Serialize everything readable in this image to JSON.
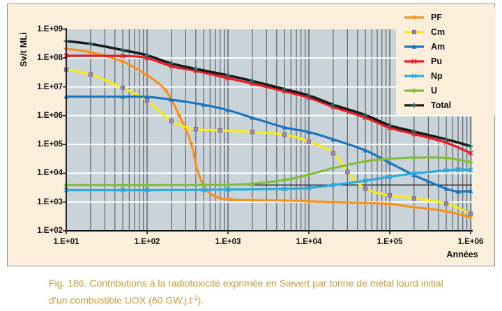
{
  "chart": {
    "y_axis_title": "Sv/t MLi",
    "x_axis_label": "Années",
    "y_ticks": [
      "1.E+09",
      "1.E+08",
      "1.E+07",
      "1.E+06",
      "1.E+05",
      "1.E+04",
      "1.E+03",
      "1.E+02"
    ],
    "x_ticks": [
      "1.E+01",
      "1.E+02",
      "1.E+03",
      "1.E+04",
      "1.E+05",
      "1.E+06"
    ],
    "colors": {
      "page_background": "#ffffff",
      "chart_background": "#fbeeda",
      "plot_background": "#c9d3da",
      "grid_vertical": "#4d4d4d",
      "grid_horizontal": "#ffffff",
      "axis": "#111111",
      "caption_text": "#cd9a3e",
      "box_border": "#90959b"
    }
  },
  "chart_data": {
    "type": "line",
    "title": "",
    "xlabel": "Années",
    "ylabel": "Sv/t MLi",
    "x_scale": "log",
    "y_scale": "log",
    "xlim": [
      10,
      1000000
    ],
    "ylim": [
      100,
      1000000000
    ],
    "grid": "vertical log-minor dark lines each decade; horizontal white major line each decade",
    "legend_position": "top-right overlay",
    "reference_line": {
      "value": 3900,
      "color": "#1a1a1a"
    },
    "series": [
      {
        "name": "PF",
        "color": "#f6921e",
        "marker": "diamond",
        "points": [
          [
            10,
            210000000.0
          ],
          [
            20,
            160000000.0
          ],
          [
            50,
            75000000.0
          ],
          [
            100,
            25000000.0
          ],
          [
            170,
            7500000.0
          ],
          [
            250,
            1000000.0
          ],
          [
            350,
            110000.0
          ],
          [
            420,
            12000.0
          ],
          [
            550,
            2500.0
          ],
          [
            800,
            1350.0
          ],
          [
            1100,
            1220.0
          ],
          [
            2000,
            1180.0
          ],
          [
            5000,
            1120.0
          ],
          [
            10000,
            1050.0
          ],
          [
            20000,
            1000.0
          ],
          [
            50000,
            920.0
          ],
          [
            100000,
            860.0
          ],
          [
            200000,
            660.0
          ],
          [
            500000,
            480.0
          ],
          [
            1000000,
            290.0
          ]
        ]
      },
      {
        "name": "Cm",
        "color": "#f7ec13",
        "marker": "square",
        "marker_color": "#9c86c6",
        "points": [
          [
            10,
            40000000.0
          ],
          [
            20,
            27000000.0
          ],
          [
            50,
            9200000.0
          ],
          [
            100,
            3300000.0
          ],
          [
            200,
            650000.0
          ],
          [
            400,
            340000.0
          ],
          [
            800,
            310000.0
          ],
          [
            2000,
            270000.0
          ],
          [
            5000,
            220000.0
          ],
          [
            10000,
            125000.0
          ],
          [
            20000,
            50000.0
          ],
          [
            30000,
            11000.0
          ],
          [
            50000,
            2900.0
          ],
          [
            100000,
            1700.0
          ],
          [
            200000,
            1350.0
          ],
          [
            500000,
            900.0
          ],
          [
            1000000,
            390.0
          ]
        ]
      },
      {
        "name": "Am",
        "color": "#1b75bc",
        "marker": "triangle",
        "points": [
          [
            10,
            4600000.0
          ],
          [
            50,
            4550000.0
          ],
          [
            100,
            4500000.0
          ],
          [
            200,
            3600000.0
          ],
          [
            500,
            2400000.0
          ],
          [
            1000,
            1550000.0
          ],
          [
            2000,
            850000.0
          ],
          [
            5000,
            390000.0
          ],
          [
            10000,
            270000.0
          ],
          [
            20000,
            150000.0
          ],
          [
            50000,
            62000.0
          ],
          [
            100000,
            23000.0
          ],
          [
            200000,
            8500.0
          ],
          [
            300000,
            5200.0
          ],
          [
            500000,
            2900.0
          ],
          [
            700000,
            2300.0
          ],
          [
            1000000,
            2400.0
          ]
        ]
      },
      {
        "name": "Pu",
        "color": "#ec1b23",
        "marker": "x",
        "points": [
          [
            10,
            120000000.0
          ],
          [
            50,
            118000000.0
          ],
          [
            100,
            100000000.0
          ],
          [
            200,
            52000000.0
          ],
          [
            400,
            36000000.0
          ],
          [
            1000,
            20000000.0
          ],
          [
            2000,
            13000000.0
          ],
          [
            5000,
            7000000.0
          ],
          [
            10000,
            4200000.0
          ],
          [
            20000,
            2000000.0
          ],
          [
            50000,
            850000.0
          ],
          [
            100000,
            380000.0
          ],
          [
            200000,
            230000.0
          ],
          [
            500000,
            115000.0
          ],
          [
            1000000,
            50000.0
          ]
        ]
      },
      {
        "name": "Np",
        "color": "#29abe2",
        "marker": "x",
        "points": [
          [
            10,
            2600.0
          ],
          [
            50,
            2600.0
          ],
          [
            100,
            2600.0
          ],
          [
            500,
            2650.0
          ],
          [
            1000,
            2700.0
          ],
          [
            5000,
            2850.0
          ],
          [
            10000,
            3100.0
          ],
          [
            20000,
            3900.0
          ],
          [
            50000,
            5500.0
          ],
          [
            100000,
            7500.0
          ],
          [
            200000,
            9800.0
          ],
          [
            500000,
            12500.0
          ],
          [
            700000,
            13500.0
          ],
          [
            1000000,
            13000.0
          ]
        ]
      },
      {
        "name": "U",
        "color": "#85bc3f",
        "marker": "circle",
        "points": [
          [
            10,
            3850.0
          ],
          [
            50,
            3850.0
          ],
          [
            100,
            3850.0
          ],
          [
            500,
            3900.0
          ],
          [
            1000,
            3950.0
          ],
          [
            2000,
            4300.0
          ],
          [
            5000,
            5800.0
          ],
          [
            10000,
            9000.0
          ],
          [
            20000,
            15000.0
          ],
          [
            50000,
            26000.0
          ],
          [
            100000,
            32000.0
          ],
          [
            200000,
            35000.0
          ],
          [
            500000,
            34000.0
          ],
          [
            1000000,
            24000.0
          ]
        ]
      },
      {
        "name": "Total",
        "color": "#1a1a1a",
        "marker": "plus",
        "marker_color": "#0e7d72",
        "points": [
          [
            10,
            390000000.0
          ],
          [
            20,
            310000000.0
          ],
          [
            50,
            190000000.0
          ],
          [
            100,
            125000000.0
          ],
          [
            200,
            65000000.0
          ],
          [
            400,
            42000000.0
          ],
          [
            1000,
            25000000.0
          ],
          [
            2000,
            16000000.0
          ],
          [
            5000,
            8300000.0
          ],
          [
            10000,
            5000000.0
          ],
          [
            20000,
            2400000.0
          ],
          [
            50000,
            1050000.0
          ],
          [
            100000,
            460000.0
          ],
          [
            200000,
            280000.0
          ],
          [
            500000,
            150000.0
          ],
          [
            1000000,
            87000.0
          ]
        ]
      }
    ]
  },
  "caption": {
    "line1": "Fig. 186. Contributions à la radiotoxicité exprimée en Sievert par tonne de métal lourd initial",
    "line2_pre": "d’un combustible UOX (60 GW.j.t",
    "line2_sup": "-1",
    "line2_post": ")."
  }
}
